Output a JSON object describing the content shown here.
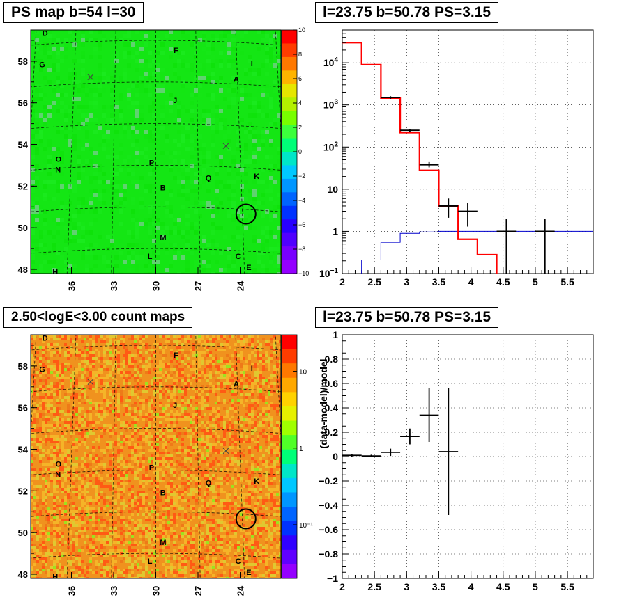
{
  "titles": {
    "ps_map": "PS map b=54 l=30",
    "count_map": "2.50<logE<3.00 count maps",
    "spectrum": "l=23.75 b=50.78 PS=3.15",
    "residual": "l=23.75 b=50.78 PS=3.15"
  },
  "colors": {
    "ps_map_background": "#14e614",
    "count_map_background": "#f0921e",
    "model_line": "#ff0000",
    "background_line": "#0000cc",
    "data_points": "#000000"
  },
  "chart_data": [
    {
      "type": "heatmap",
      "name": "ps_map",
      "xticks": [
        "36",
        "33",
        "30",
        "27",
        "24"
      ],
      "yticks": [
        "58",
        "56",
        "54",
        "52",
        "50",
        "48"
      ],
      "xlim": [
        38.9,
        21.1
      ],
      "ylim": [
        47.8,
        59.5
      ],
      "colorbar": {
        "ticks": [
          "10",
          "8",
          "6",
          "4",
          "2",
          "0",
          "−2",
          "−4",
          "−6",
          "−8",
          "−10"
        ],
        "range": [
          -10,
          10
        ],
        "scale": "linear"
      },
      "source_letters": [
        {
          "label": "D",
          "l": 38.3,
          "b": 59.4
        },
        {
          "label": "F",
          "l": 28.5,
          "b": 58.4
        },
        {
          "label": "G",
          "l": 38.4,
          "b": 57.9
        },
        {
          "label": "I",
          "l": 22.9,
          "b": 57.9
        },
        {
          "label": "A",
          "l": 24.1,
          "b": 57.1
        },
        {
          "label": "J",
          "l": 28.6,
          "b": 56.0
        },
        {
          "label": "O",
          "l": 36.9,
          "b": 53.3
        },
        {
          "label": "N",
          "l": 36.9,
          "b": 52.8
        },
        {
          "label": "P",
          "l": 30.3,
          "b": 53.0
        },
        {
          "label": "K",
          "l": 22.9,
          "b": 52.5
        },
        {
          "label": "Q",
          "l": 26.3,
          "b": 52.3
        },
        {
          "label": "B",
          "l": 29.5,
          "b": 51.8
        },
        {
          "label": "M",
          "l": 29.5,
          "b": 49.4
        },
        {
          "label": "L",
          "l": 30.4,
          "b": 48.5
        },
        {
          "label": "C",
          "l": 24.4,
          "b": 48.6
        },
        {
          "label": "E",
          "l": 23.7,
          "b": 48.1
        },
        {
          "label": "H",
          "l": 36.8,
          "b": 47.9
        }
      ],
      "marker_circle": {
        "l": 23.75,
        "b": 50.78
      }
    },
    {
      "type": "heatmap",
      "name": "count_map",
      "xticks": [
        "36",
        "33",
        "30",
        "27",
        "24"
      ],
      "yticks": [
        "58",
        "56",
        "54",
        "52",
        "50",
        "48"
      ],
      "xlim": [
        38.9,
        21.1
      ],
      "ylim": [
        47.8,
        59.5
      ],
      "colorbar": {
        "ticks": [
          "10",
          "1",
          "10⁻¹"
        ],
        "range": [
          0.02,
          30
        ],
        "scale": "log"
      },
      "marker_circle": {
        "l": 23.75,
        "b": 50.78
      }
    },
    {
      "type": "line",
      "name": "spectrum",
      "xlim": [
        2.0,
        5.9
      ],
      "ylim": [
        0.1,
        60000
      ],
      "yscale": "log",
      "grid": true,
      "xticks": [
        "2",
        "2.5",
        "3",
        "3.5",
        "4",
        "4.5",
        "5",
        "5.5"
      ],
      "yticks": [
        "10−1",
        "1",
        "10",
        "10²",
        "10³",
        "10⁴"
      ],
      "model_steps": {
        "edges": [
          2.0,
          2.3,
          2.6,
          2.9,
          3.2,
          3.5,
          3.8,
          4.1,
          4.4
        ],
        "values": [
          30000,
          9000,
          1450,
          220,
          28,
          4,
          0.65,
          0.28
        ]
      },
      "background_steps": {
        "edges": [
          2.0,
          2.3,
          2.6,
          2.9,
          3.2,
          3.5,
          5.9
        ],
        "values": [
          0.09,
          0.21,
          0.55,
          0.9,
          0.97,
          1.0
        ]
      },
      "data_points": [
        {
          "x": 2.75,
          "xerr": 0.15,
          "y": 1500,
          "ylo": 1400,
          "yhi": 1600
        },
        {
          "x": 3.05,
          "xerr": 0.15,
          "y": 250,
          "ylo": 230,
          "yhi": 270
        },
        {
          "x": 3.35,
          "xerr": 0.15,
          "y": 38,
          "ylo": 33,
          "yhi": 44
        },
        {
          "x": 3.65,
          "xerr": 0.15,
          "y": 4.0,
          "ylo": 2.1,
          "yhi": 6.0
        },
        {
          "x": 3.95,
          "xerr": 0.15,
          "y": 3.0,
          "ylo": 1.3,
          "yhi": 4.8
        },
        {
          "x": 4.55,
          "xerr": 0.15,
          "y": 1.0,
          "ylo": 0.1,
          "yhi": 2.0
        },
        {
          "x": 5.15,
          "xerr": 0.15,
          "y": 1.0,
          "ylo": 0.1,
          "yhi": 2.0
        }
      ]
    },
    {
      "type": "scatter",
      "name": "residual",
      "ylabel": "(data-model)/model",
      "xlim": [
        2.0,
        5.9
      ],
      "ylim": [
        -1.0,
        1.0
      ],
      "grid": true,
      "xticks": [
        "2",
        "2.5",
        "3",
        "3.5",
        "4",
        "4.5",
        "5",
        "5.5"
      ],
      "yticks": [
        "−1",
        "−0.8",
        "−0.6",
        "−0.4",
        "−0.2",
        "0",
        "0.2",
        "0.4",
        "0.6",
        "0.8",
        "1"
      ],
      "points": [
        {
          "x": 2.15,
          "xerr": 0.15,
          "y": 0.01,
          "yerr": 0.01
        },
        {
          "x": 2.45,
          "xerr": 0.15,
          "y": 0.005,
          "yerr": 0.01
        },
        {
          "x": 2.75,
          "xerr": 0.15,
          "y": 0.035,
          "yerr": 0.03
        },
        {
          "x": 3.05,
          "xerr": 0.15,
          "y": 0.165,
          "yerr": 0.065
        },
        {
          "x": 3.35,
          "xerr": 0.15,
          "y": 0.34,
          "yerr": 0.22
        },
        {
          "x": 3.65,
          "xerr": 0.15,
          "y": 0.04,
          "yerr": 0.52
        }
      ]
    }
  ]
}
